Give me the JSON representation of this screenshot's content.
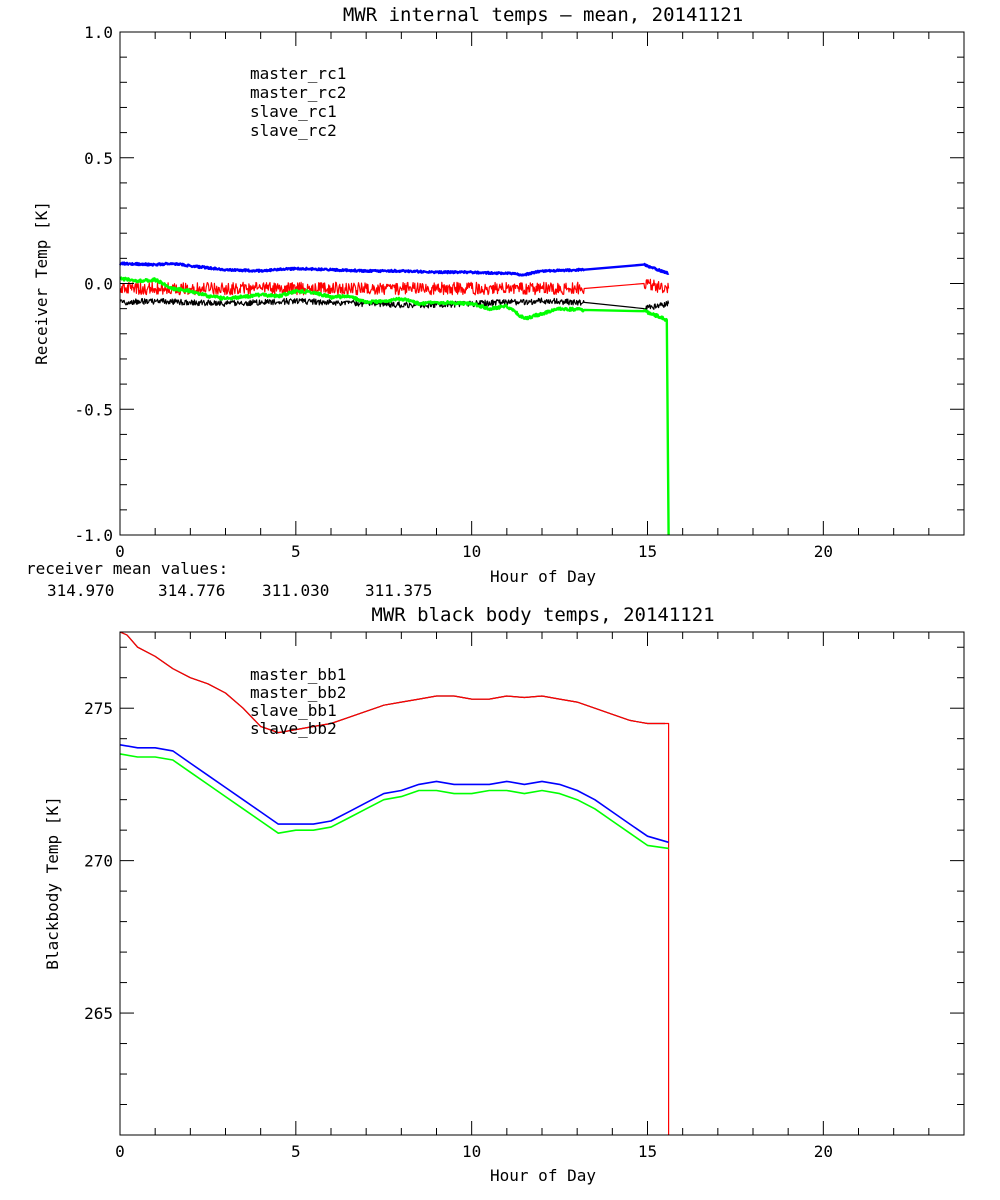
{
  "chart_data": [
    {
      "type": "line",
      "title": "MWR internal temps – mean, 20141121",
      "xlabel": "Hour of Day",
      "ylabel": "Receiver Temp [K]",
      "xlim": [
        0,
        24
      ],
      "ylim": [
        -1.0,
        1.0
      ],
      "xticks": [
        0,
        5,
        10,
        15,
        20
      ],
      "xtick_labels": [
        "0",
        "5",
        "10",
        "15",
        "20"
      ],
      "yticks": [
        -1.0,
        -0.5,
        0.0,
        0.5,
        1.0
      ],
      "ytick_labels": [
        "-1.0",
        "-0.5",
        "0.0",
        "0.5",
        "1.0"
      ],
      "grid": false,
      "legend": "top-left",
      "mean_values_label": "receiver mean values:",
      "mean_values": [
        {
          "text": "314.970",
          "color": "#000000"
        },
        {
          "text": "314.776",
          "color": "#ff0000"
        },
        {
          "text": "311.030",
          "color": "#0000ff"
        },
        {
          "text": "311.375",
          "color": "#00ff00"
        }
      ],
      "series": [
        {
          "name": "master_rc1",
          "color": "#000000",
          "noise": 0.012,
          "x": [
            0,
            1,
            2,
            3,
            4,
            5,
            6,
            7,
            8,
            9,
            10,
            11,
            12,
            13.2,
            14.9,
            15.6
          ],
          "y": [
            -0.075,
            -0.07,
            -0.075,
            -0.08,
            -0.075,
            -0.07,
            -0.075,
            -0.08,
            -0.085,
            -0.085,
            -0.08,
            -0.075,
            -0.07,
            -0.075,
            -0.1,
            -0.08
          ]
        },
        {
          "name": "master_rc2",
          "color": "#ff0000",
          "noise": 0.025,
          "x": [
            0,
            1,
            2,
            3,
            4,
            5,
            6,
            7,
            8,
            9,
            10,
            11,
            12,
            13.2,
            14.9,
            15.6
          ],
          "y": [
            -0.02,
            -0.02,
            -0.02,
            -0.02,
            -0.02,
            -0.02,
            -0.02,
            -0.02,
            -0.02,
            -0.02,
            -0.02,
            -0.02,
            -0.02,
            -0.02,
            0.0,
            -0.02
          ]
        },
        {
          "name": "slave_rc1",
          "color": "#0000ff",
          "noise": 0.004,
          "x": [
            0,
            1,
            1.5,
            2,
            3,
            4,
            5,
            6,
            7,
            8,
            9,
            10,
            11,
            11.5,
            12,
            13.2,
            14.9,
            15.6
          ],
          "y": [
            0.08,
            0.075,
            0.08,
            0.07,
            0.055,
            0.05,
            0.06,
            0.055,
            0.05,
            0.05,
            0.045,
            0.045,
            0.04,
            0.035,
            0.05,
            0.055,
            0.075,
            0.04
          ]
        },
        {
          "name": "slave_rc2",
          "color": "#00ff00",
          "noise": 0.006,
          "x": [
            0,
            0.5,
            1,
            1.5,
            2,
            2.5,
            3,
            4,
            4.5,
            5,
            5.5,
            6,
            6.5,
            7,
            7.5,
            8,
            8.5,
            9,
            10,
            10.5,
            11,
            11.5,
            12,
            12.5,
            13.2,
            14.9,
            15.3,
            15.55,
            15.6
          ],
          "y": [
            0.02,
            0.01,
            0.015,
            -0.02,
            -0.03,
            -0.05,
            -0.06,
            -0.045,
            -0.05,
            -0.03,
            -0.035,
            -0.055,
            -0.05,
            -0.075,
            -0.07,
            -0.06,
            -0.08,
            -0.075,
            -0.08,
            -0.1,
            -0.09,
            -0.14,
            -0.12,
            -0.1,
            -0.105,
            -0.11,
            -0.13,
            -0.145,
            -1.0
          ]
        }
      ]
    },
    {
      "type": "line",
      "title": "MWR black body temps, 20141121",
      "xlabel": "Hour of Day",
      "ylabel": "Blackbody Temp [K]",
      "xlim": [
        0,
        24
      ],
      "ylim": [
        261,
        277.5
      ],
      "xticks": [
        0,
        5,
        10,
        15,
        20
      ],
      "xtick_labels": [
        "0",
        "5",
        "10",
        "15",
        "20"
      ],
      "yticks": [
        265,
        270,
        275
      ],
      "ytick_labels": [
        "265",
        "270",
        "275"
      ],
      "grid": false,
      "legend": "top-left",
      "series": [
        {
          "name": "master_bb1",
          "color": "#000000",
          "x": [
            0,
            0.2,
            0.5,
            1,
            1.5,
            2,
            2.5,
            3,
            3.5,
            4,
            4.5,
            5,
            5.5,
            6,
            6.5,
            7,
            7.5,
            8,
            8.5,
            9,
            9.5,
            10,
            10.5,
            11,
            11.5,
            12,
            12.5,
            13,
            13.5,
            14,
            14.5,
            15,
            15.5
          ],
          "y": [
            277.5,
            277.4,
            277.0,
            276.7,
            276.3,
            276.0,
            275.8,
            275.5,
            275.0,
            274.4,
            274.2,
            274.3,
            274.4,
            274.5,
            274.7,
            274.9,
            275.1,
            275.2,
            275.3,
            275.4,
            275.4,
            275.3,
            275.3,
            275.4,
            275.35,
            275.4,
            275.3,
            275.2,
            275.0,
            274.8,
            274.6,
            274.5,
            274.5
          ]
        },
        {
          "name": "master_bb2",
          "color": "#ff0000",
          "x": [
            0,
            0.2,
            0.5,
            1,
            1.5,
            2,
            2.5,
            3,
            3.5,
            4,
            4.5,
            5,
            5.5,
            6,
            6.5,
            7,
            7.5,
            8,
            8.5,
            9,
            9.5,
            10,
            10.5,
            11,
            11.5,
            12,
            12.5,
            13,
            13.5,
            14,
            14.5,
            15,
            15.5,
            15.6,
            15.6
          ],
          "y": [
            277.5,
            277.4,
            277.0,
            276.7,
            276.3,
            276.0,
            275.8,
            275.5,
            275.0,
            274.4,
            274.2,
            274.3,
            274.4,
            274.5,
            274.7,
            274.9,
            275.1,
            275.2,
            275.3,
            275.4,
            275.4,
            275.3,
            275.3,
            275.4,
            275.35,
            275.4,
            275.3,
            275.2,
            275.0,
            274.8,
            274.6,
            274.5,
            274.5,
            274.5,
            261
          ]
        },
        {
          "name": "slave_bb1",
          "color": "#0000ff",
          "x": [
            0,
            0.5,
            1,
            1.5,
            2,
            2.5,
            3,
            3.5,
            4,
            4.5,
            5,
            5.5,
            6,
            6.5,
            7,
            7.5,
            8,
            8.5,
            9,
            9.5,
            10,
            10.5,
            11,
            11.5,
            12,
            12.5,
            13,
            13.5,
            14,
            14.5,
            15,
            15.6
          ],
          "y": [
            273.8,
            273.7,
            273.7,
            273.6,
            273.2,
            272.8,
            272.4,
            272.0,
            271.6,
            271.2,
            271.2,
            271.2,
            271.3,
            271.6,
            271.9,
            272.2,
            272.3,
            272.5,
            272.6,
            272.5,
            272.5,
            272.5,
            272.6,
            272.5,
            272.6,
            272.5,
            272.3,
            272.0,
            271.6,
            271.2,
            270.8,
            270.6
          ]
        },
        {
          "name": "slave_bb2",
          "color": "#00ff00",
          "x": [
            0,
            0.5,
            1,
            1.5,
            2,
            2.5,
            3,
            3.5,
            4,
            4.5,
            5,
            5.5,
            6,
            6.5,
            7,
            7.5,
            8,
            8.5,
            9,
            9.5,
            10,
            10.5,
            11,
            11.5,
            12,
            12.5,
            13,
            13.5,
            14,
            14.5,
            15,
            15.6
          ],
          "y": [
            273.5,
            273.4,
            273.4,
            273.3,
            272.9,
            272.5,
            272.1,
            271.7,
            271.3,
            270.9,
            271.0,
            271.0,
            271.1,
            271.4,
            271.7,
            272.0,
            272.1,
            272.3,
            272.3,
            272.2,
            272.2,
            272.3,
            272.3,
            272.2,
            272.3,
            272.2,
            272.0,
            271.7,
            271.3,
            270.9,
            270.5,
            270.4
          ]
        }
      ]
    }
  ]
}
